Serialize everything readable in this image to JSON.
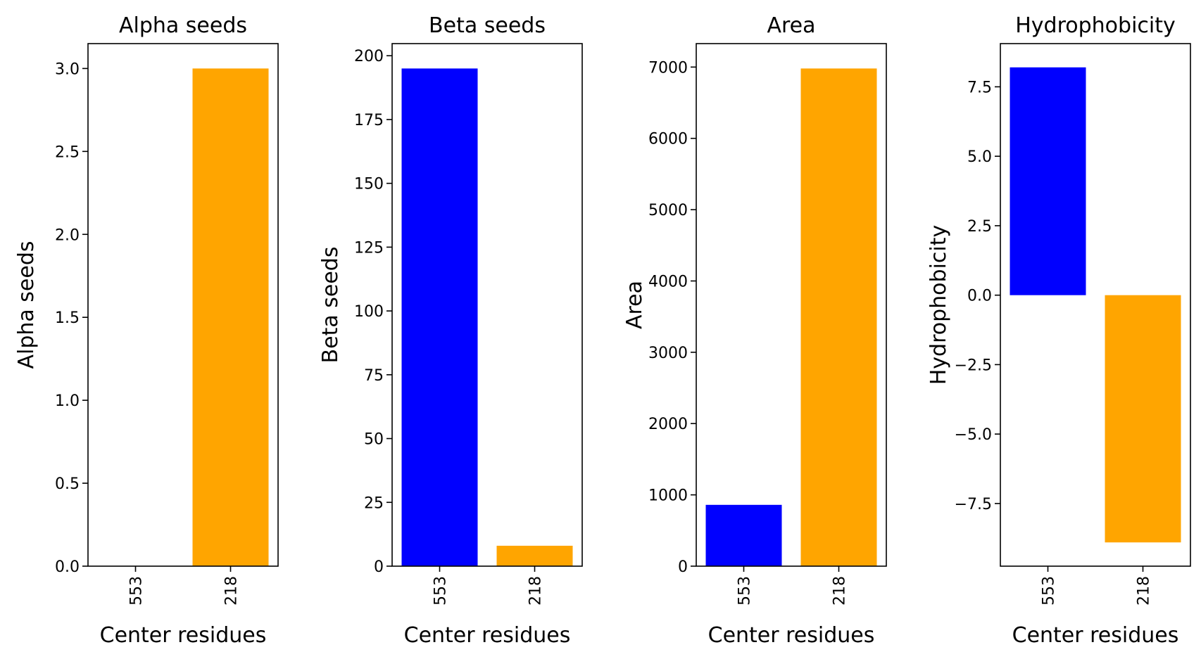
{
  "chart_data": [
    {
      "type": "bar",
      "title": "Alpha seeds",
      "xlabel": "Center residues",
      "ylabel": "Alpha seeds",
      "categories": [
        "553",
        "218"
      ],
      "values": [
        0,
        3
      ],
      "colors": [
        "#0000ff",
        "#ffa500"
      ],
      "ylim": [
        0,
        3.15
      ],
      "yticks": [
        0,
        0.5,
        1.0,
        1.5,
        2.0,
        2.5,
        3.0
      ],
      "ytick_labels": [
        "0.0",
        "0.5",
        "1.0",
        "1.5",
        "2.0",
        "2.5",
        "3.0"
      ]
    },
    {
      "type": "bar",
      "title": "Beta seeds",
      "xlabel": "Center residues",
      "ylabel": "Beta seeds",
      "categories": [
        "553",
        "218"
      ],
      "values": [
        195,
        8
      ],
      "colors": [
        "#0000ff",
        "#ffa500"
      ],
      "ylim": [
        0,
        204.75
      ],
      "yticks": [
        0,
        25,
        50,
        75,
        100,
        125,
        150,
        175,
        200
      ],
      "ytick_labels": [
        "0",
        "25",
        "50",
        "75",
        "100",
        "125",
        "150",
        "175",
        "200"
      ]
    },
    {
      "type": "bar",
      "title": "Area",
      "xlabel": "Center residues",
      "ylabel": "Area",
      "categories": [
        "553",
        "218"
      ],
      "values": [
        860,
        6980
      ],
      "colors": [
        "#0000ff",
        "#ffa500"
      ],
      "ylim": [
        0,
        7329
      ],
      "yticks": [
        0,
        1000,
        2000,
        3000,
        4000,
        5000,
        6000,
        7000
      ],
      "ytick_labels": [
        "0",
        "1000",
        "2000",
        "3000",
        "4000",
        "5000",
        "6000",
        "7000"
      ]
    },
    {
      "type": "bar",
      "title": "Hydrophobicity",
      "xlabel": "Center residues",
      "ylabel": "Hydrophobicity",
      "categories": [
        "553",
        "218"
      ],
      "values": [
        8.2,
        -8.9
      ],
      "colors": [
        "#0000ff",
        "#ffa500"
      ],
      "ylim": [
        -9.755,
        9.055
      ],
      "yticks": [
        -7.5,
        -5.0,
        -2.5,
        0.0,
        2.5,
        5.0,
        7.5
      ],
      "ytick_labels": [
        "−7.5",
        "−5.0",
        "−2.5",
        "0.0",
        "2.5",
        "5.0",
        "7.5"
      ]
    }
  ]
}
